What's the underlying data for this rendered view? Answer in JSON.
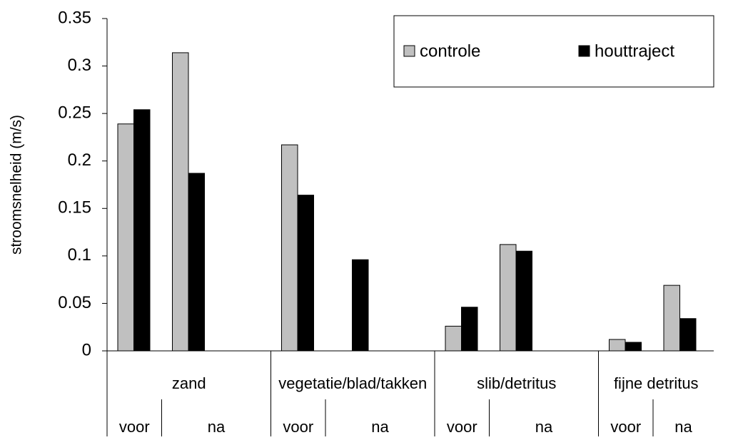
{
  "chart_data": {
    "type": "bar",
    "y_label": "stroomsnelheid (m/s)",
    "groups": [
      "zand",
      "vegetatie/blad/takken",
      "slib/detritus",
      "fijne detritus"
    ],
    "sub_categories": [
      "voor",
      "na",
      "voor",
      "na",
      "voor",
      "na",
      "voor",
      "na"
    ],
    "series": [
      {
        "name": "controle",
        "color": "#c0c0c0",
        "values": [
          0.239,
          0.314,
          0.217,
          null,
          0.026,
          0.112,
          0.012,
          0.069
        ]
      },
      {
        "name": "houttraject",
        "color": "#000000",
        "values": [
          0.254,
          0.187,
          0.164,
          0.096,
          0.046,
          0.105,
          0.009,
          0.034
        ]
      }
    ],
    "ylim": [
      0,
      0.35
    ],
    "yticks": [
      0,
      0.05,
      0.1,
      0.15,
      0.2,
      0.25,
      0.3,
      0.35
    ],
    "legend": "top-right"
  }
}
